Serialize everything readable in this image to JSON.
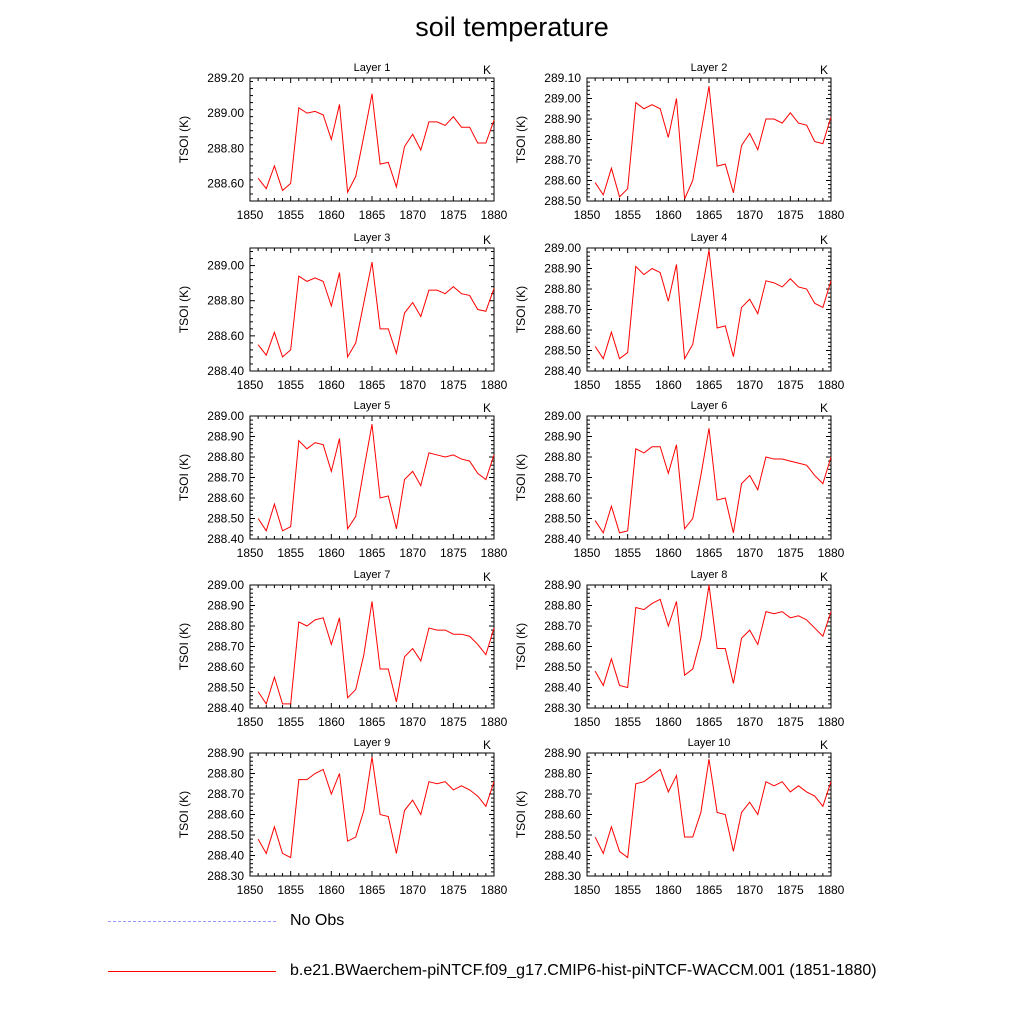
{
  "title": "soil temperature",
  "ylabel": "TSOI  (K)",
  "units": "K",
  "xticks": [
    1850,
    1855,
    1860,
    1865,
    1870,
    1875,
    1880
  ],
  "legend": [
    {
      "label": "No Obs",
      "color": "#9999ff",
      "style": "dashed"
    },
    {
      "label": "b.e21.BWaerchem-piNTCF.f09_g17.CMIP6-hist-piNTCF-WACCM.001 (1851-1880)",
      "color": "#ff0000",
      "style": "solid"
    }
  ],
  "chart_data": [
    {
      "type": "line",
      "title": "Layer 1",
      "xlim": [
        1850,
        1880
      ],
      "ylim": [
        288.5,
        289.2
      ],
      "yticks": [
        "288.60",
        "288.80",
        "289.00",
        "289.20"
      ],
      "series": [
        {
          "color": "#ff0000",
          "x": [
            1851,
            1852,
            1853,
            1854,
            1855,
            1856,
            1857,
            1858,
            1859,
            1860,
            1861,
            1862,
            1863,
            1864,
            1865,
            1866,
            1867,
            1868,
            1869,
            1870,
            1871,
            1872,
            1873,
            1874,
            1875,
            1876,
            1877,
            1878,
            1879,
            1880
          ],
          "values": [
            288.63,
            288.57,
            288.7,
            288.56,
            288.6,
            289.03,
            289.0,
            289.01,
            288.99,
            288.85,
            289.05,
            288.55,
            288.64,
            288.87,
            289.11,
            288.71,
            288.72,
            288.58,
            288.81,
            288.88,
            288.79,
            288.95,
            288.95,
            288.93,
            288.98,
            288.92,
            288.92,
            288.83,
            288.83,
            288.96
          ]
        }
      ]
    },
    {
      "type": "line",
      "title": "Layer 2",
      "xlim": [
        1850,
        1880
      ],
      "ylim": [
        288.5,
        289.1
      ],
      "yticks": [
        "288.50",
        "288.60",
        "288.70",
        "288.80",
        "288.90",
        "289.00",
        "289.10"
      ],
      "series": [
        {
          "color": "#ff0000",
          "x": [
            1851,
            1852,
            1853,
            1854,
            1855,
            1856,
            1857,
            1858,
            1859,
            1860,
            1861,
            1862,
            1863,
            1864,
            1865,
            1866,
            1867,
            1868,
            1869,
            1870,
            1871,
            1872,
            1873,
            1874,
            1875,
            1876,
            1877,
            1878,
            1879,
            1880
          ],
          "values": [
            288.59,
            288.53,
            288.66,
            288.52,
            288.56,
            288.98,
            288.95,
            288.97,
            288.95,
            288.81,
            289.0,
            288.51,
            288.6,
            288.83,
            289.06,
            288.67,
            288.68,
            288.54,
            288.77,
            288.83,
            288.75,
            288.9,
            288.9,
            288.88,
            288.93,
            288.88,
            288.87,
            288.79,
            288.78,
            288.91
          ]
        }
      ]
    },
    {
      "type": "line",
      "title": "Layer 3",
      "xlim": [
        1850,
        1880
      ],
      "ylim": [
        288.4,
        289.1
      ],
      "yticks": [
        "288.40",
        "288.60",
        "288.80",
        "289.00"
      ],
      "series": [
        {
          "color": "#ff0000",
          "x": [
            1851,
            1852,
            1853,
            1854,
            1855,
            1856,
            1857,
            1858,
            1859,
            1860,
            1861,
            1862,
            1863,
            1864,
            1865,
            1866,
            1867,
            1868,
            1869,
            1870,
            1871,
            1872,
            1873,
            1874,
            1875,
            1876,
            1877,
            1878,
            1879,
            1880
          ],
          "values": [
            288.55,
            288.49,
            288.62,
            288.48,
            288.52,
            288.94,
            288.91,
            288.93,
            288.91,
            288.77,
            288.96,
            288.48,
            288.56,
            288.79,
            289.02,
            288.64,
            288.64,
            288.5,
            288.73,
            288.79,
            288.71,
            288.86,
            288.86,
            288.84,
            288.88,
            288.84,
            288.83,
            288.75,
            288.74,
            288.87
          ]
        }
      ]
    },
    {
      "type": "line",
      "title": "Layer 4",
      "xlim": [
        1850,
        1880
      ],
      "ylim": [
        288.4,
        289.0
      ],
      "yticks": [
        "288.40",
        "288.50",
        "288.60",
        "288.70",
        "288.80",
        "288.90",
        "289.00"
      ],
      "series": [
        {
          "color": "#ff0000",
          "x": [
            1851,
            1852,
            1853,
            1854,
            1855,
            1856,
            1857,
            1858,
            1859,
            1860,
            1861,
            1862,
            1863,
            1864,
            1865,
            1866,
            1867,
            1868,
            1869,
            1870,
            1871,
            1872,
            1873,
            1874,
            1875,
            1876,
            1877,
            1878,
            1879,
            1880
          ],
          "values": [
            288.52,
            288.46,
            288.59,
            288.46,
            288.49,
            288.91,
            288.87,
            288.9,
            288.88,
            288.74,
            288.92,
            288.46,
            288.53,
            288.76,
            288.99,
            288.61,
            288.62,
            288.47,
            288.71,
            288.75,
            288.68,
            288.84,
            288.83,
            288.81,
            288.85,
            288.81,
            288.8,
            288.73,
            288.71,
            288.84
          ]
        }
      ]
    },
    {
      "type": "line",
      "title": "Layer 5",
      "xlim": [
        1850,
        1880
      ],
      "ylim": [
        288.4,
        289.0
      ],
      "yticks": [
        "288.40",
        "288.50",
        "288.60",
        "288.70",
        "288.80",
        "288.90",
        "289.00"
      ],
      "series": [
        {
          "color": "#ff0000",
          "x": [
            1851,
            1852,
            1853,
            1854,
            1855,
            1856,
            1857,
            1858,
            1859,
            1860,
            1861,
            1862,
            1863,
            1864,
            1865,
            1866,
            1867,
            1868,
            1869,
            1870,
            1871,
            1872,
            1873,
            1874,
            1875,
            1876,
            1877,
            1878,
            1879,
            1880
          ],
          "values": [
            288.5,
            288.44,
            288.57,
            288.44,
            288.46,
            288.88,
            288.84,
            288.87,
            288.86,
            288.73,
            288.89,
            288.45,
            288.51,
            288.74,
            288.96,
            288.6,
            288.61,
            288.45,
            288.69,
            288.73,
            288.66,
            288.82,
            288.81,
            288.8,
            288.81,
            288.79,
            288.78,
            288.72,
            288.69,
            288.81
          ]
        }
      ]
    },
    {
      "type": "line",
      "title": "Layer 6",
      "xlim": [
        1850,
        1880
      ],
      "ylim": [
        288.4,
        289.0
      ],
      "yticks": [
        "288.40",
        "288.50",
        "288.60",
        "288.70",
        "288.80",
        "288.90",
        "289.00"
      ],
      "series": [
        {
          "color": "#ff0000",
          "x": [
            1851,
            1852,
            1853,
            1854,
            1855,
            1856,
            1857,
            1858,
            1859,
            1860,
            1861,
            1862,
            1863,
            1864,
            1865,
            1866,
            1867,
            1868,
            1869,
            1870,
            1871,
            1872,
            1873,
            1874,
            1875,
            1876,
            1877,
            1878,
            1879,
            1880
          ],
          "values": [
            288.49,
            288.43,
            288.56,
            288.43,
            288.44,
            288.84,
            288.82,
            288.85,
            288.85,
            288.72,
            288.86,
            288.45,
            288.5,
            288.71,
            288.94,
            288.59,
            288.6,
            288.43,
            288.67,
            288.71,
            288.64,
            288.8,
            288.79,
            288.79,
            288.78,
            288.77,
            288.76,
            288.71,
            288.67,
            288.8
          ]
        }
      ]
    },
    {
      "type": "line",
      "title": "Layer 7",
      "xlim": [
        1850,
        1880
      ],
      "ylim": [
        288.4,
        289.0
      ],
      "yticks": [
        "288.40",
        "288.50",
        "288.60",
        "288.70",
        "288.80",
        "288.90",
        "289.00"
      ],
      "series": [
        {
          "color": "#ff0000",
          "x": [
            1851,
            1852,
            1853,
            1854,
            1855,
            1856,
            1857,
            1858,
            1859,
            1860,
            1861,
            1862,
            1863,
            1864,
            1865,
            1866,
            1867,
            1868,
            1869,
            1870,
            1871,
            1872,
            1873,
            1874,
            1875,
            1876,
            1877,
            1878,
            1879,
            1880
          ],
          "values": [
            288.48,
            288.42,
            288.55,
            288.42,
            288.42,
            288.82,
            288.8,
            288.83,
            288.84,
            288.71,
            288.84,
            288.45,
            288.49,
            288.66,
            288.92,
            288.59,
            288.59,
            288.43,
            288.65,
            288.69,
            288.63,
            288.79,
            288.78,
            288.78,
            288.76,
            288.76,
            288.75,
            288.71,
            288.66,
            288.79
          ]
        }
      ]
    },
    {
      "type": "line",
      "title": "Layer 8",
      "xlim": [
        1850,
        1880
      ],
      "ylim": [
        288.3,
        288.9
      ],
      "yticks": [
        "288.30",
        "288.40",
        "288.50",
        "288.60",
        "288.70",
        "288.80",
        "288.90"
      ],
      "series": [
        {
          "color": "#ff0000",
          "x": [
            1851,
            1852,
            1853,
            1854,
            1855,
            1856,
            1857,
            1858,
            1859,
            1860,
            1861,
            1862,
            1863,
            1864,
            1865,
            1866,
            1867,
            1868,
            1869,
            1870,
            1871,
            1872,
            1873,
            1874,
            1875,
            1876,
            1877,
            1878,
            1879,
            1880
          ],
          "values": [
            288.48,
            288.41,
            288.54,
            288.41,
            288.4,
            288.79,
            288.78,
            288.81,
            288.83,
            288.7,
            288.82,
            288.46,
            288.49,
            288.64,
            288.9,
            288.59,
            288.59,
            288.42,
            288.64,
            288.68,
            288.61,
            288.77,
            288.76,
            288.77,
            288.74,
            288.75,
            288.73,
            288.69,
            288.65,
            288.77
          ]
        }
      ]
    },
    {
      "type": "line",
      "title": "Layer 9",
      "xlim": [
        1850,
        1880
      ],
      "ylim": [
        288.3,
        288.9
      ],
      "yticks": [
        "288.30",
        "288.40",
        "288.50",
        "288.60",
        "288.70",
        "288.80",
        "288.90"
      ],
      "series": [
        {
          "color": "#ff0000",
          "x": [
            1851,
            1852,
            1853,
            1854,
            1855,
            1856,
            1857,
            1858,
            1859,
            1860,
            1861,
            1862,
            1863,
            1864,
            1865,
            1866,
            1867,
            1868,
            1869,
            1870,
            1871,
            1872,
            1873,
            1874,
            1875,
            1876,
            1877,
            1878,
            1879,
            1880
          ],
          "values": [
            288.48,
            288.41,
            288.54,
            288.41,
            288.39,
            288.77,
            288.77,
            288.8,
            288.82,
            288.7,
            288.8,
            288.47,
            288.49,
            288.62,
            288.88,
            288.6,
            288.59,
            288.41,
            288.62,
            288.67,
            288.6,
            288.76,
            288.75,
            288.76,
            288.72,
            288.74,
            288.72,
            288.69,
            288.64,
            288.76
          ]
        }
      ]
    },
    {
      "type": "line",
      "title": "Layer 10",
      "xlim": [
        1850,
        1880
      ],
      "ylim": [
        288.3,
        288.9
      ],
      "yticks": [
        "288.30",
        "288.40",
        "288.50",
        "288.60",
        "288.70",
        "288.80",
        "288.90"
      ],
      "series": [
        {
          "color": "#ff0000",
          "x": [
            1851,
            1852,
            1853,
            1854,
            1855,
            1856,
            1857,
            1858,
            1859,
            1860,
            1861,
            1862,
            1863,
            1864,
            1865,
            1866,
            1867,
            1868,
            1869,
            1870,
            1871,
            1872,
            1873,
            1874,
            1875,
            1876,
            1877,
            1878,
            1879,
            1880
          ],
          "values": [
            288.49,
            288.41,
            288.54,
            288.42,
            288.39,
            288.75,
            288.76,
            288.79,
            288.82,
            288.71,
            288.79,
            288.49,
            288.49,
            288.61,
            288.87,
            288.61,
            288.6,
            288.42,
            288.61,
            288.66,
            288.6,
            288.76,
            288.74,
            288.76,
            288.71,
            288.74,
            288.71,
            288.69,
            288.64,
            288.76
          ]
        }
      ]
    }
  ]
}
